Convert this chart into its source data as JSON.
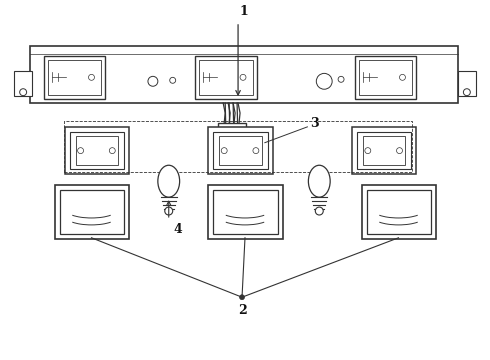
{
  "bg_color": "#ffffff",
  "line_color": "#333333",
  "label_color": "#111111",
  "figsize": [
    4.9,
    3.6
  ],
  "dpi": 100
}
